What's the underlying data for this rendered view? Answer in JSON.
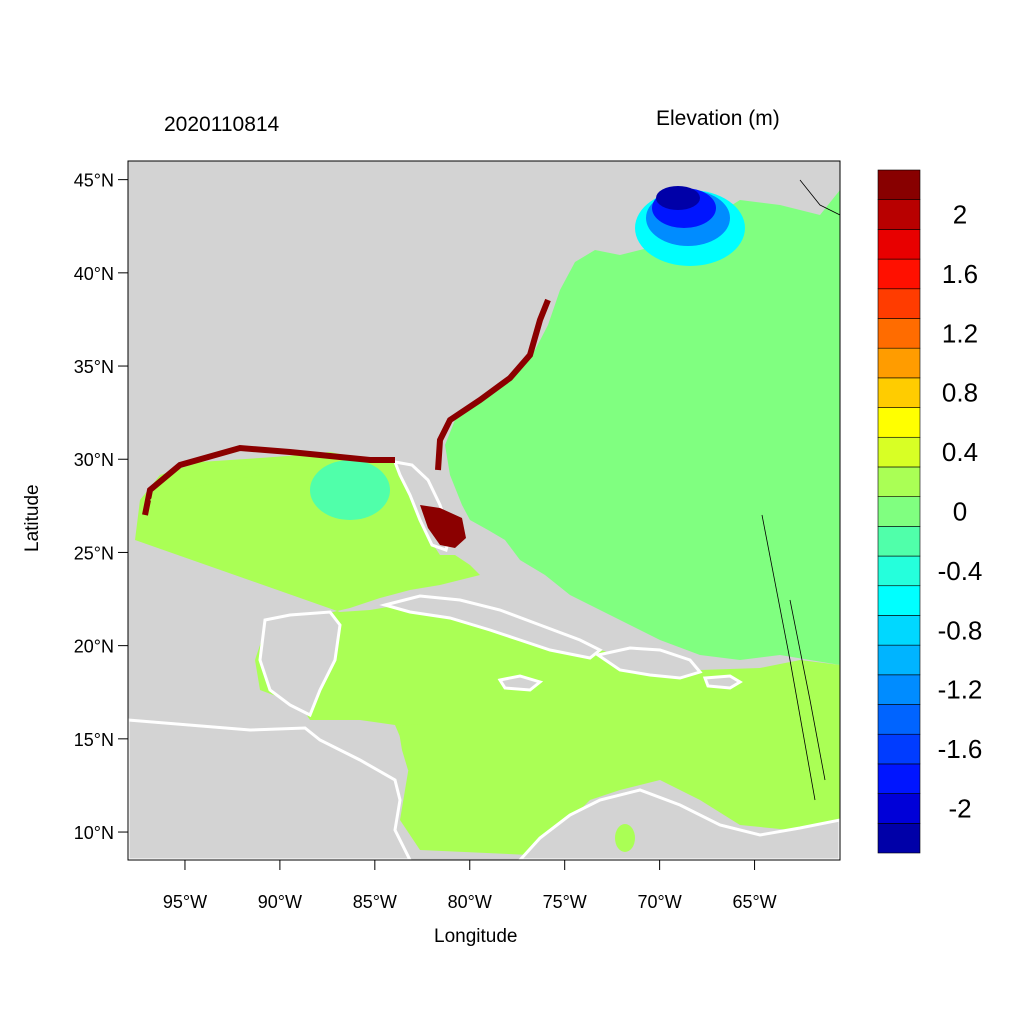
{
  "map": {
    "title_left": "2020110814",
    "title_right": "Elevation (m)",
    "xlabel": "Longitude",
    "ylabel": "Latitude",
    "lon_range": [
      -98,
      -60.5
    ],
    "lat_range": [
      8.5,
      46
    ],
    "lon_ticks": [
      "95°W",
      "90°W",
      "85°W",
      "80°W",
      "75°W",
      "70°W",
      "65°W"
    ],
    "lat_ticks": [
      "45°N",
      "40°N",
      "35°N",
      "30°N",
      "25°N",
      "20°N",
      "15°N",
      "10°N"
    ],
    "colors": {
      "land": "#d3d3d3",
      "water_white": "#ffffff",
      "ocean_atlantic": "#80ff80",
      "gulf_caribbean": "#aaff55",
      "coastal_high": "#8b0000"
    }
  },
  "colorbar": {
    "levels": [
      -2.2,
      -2,
      -1.8,
      -1.6,
      -1.4,
      -1.2,
      -1,
      -0.8,
      -0.6,
      -0.4,
      -0.2,
      0,
      0.2,
      0.4,
      0.6,
      0.8,
      1,
      1.2,
      1.4,
      1.6,
      1.8,
      2,
      2.2
    ],
    "colors": [
      "#0000a8",
      "#0000d8",
      "#0015ff",
      "#003cff",
      "#0064ff",
      "#008cff",
      "#00b4ff",
      "#00d8ff",
      "#00ffff",
      "#25ffdc",
      "#50ffaa",
      "#80ff80",
      "#aaff55",
      "#d8ff25",
      "#ffff00",
      "#ffcc00",
      "#ff9c00",
      "#ff6c00",
      "#ff3c00",
      "#ff1000",
      "#e80000",
      "#b80000",
      "#880000"
    ],
    "tick_labels": [
      "-2",
      "-1.6",
      "-1.2",
      "-0.8",
      "-0.4",
      "0",
      "0.4",
      "0.8",
      "1.2",
      "1.6",
      "2"
    ]
  }
}
